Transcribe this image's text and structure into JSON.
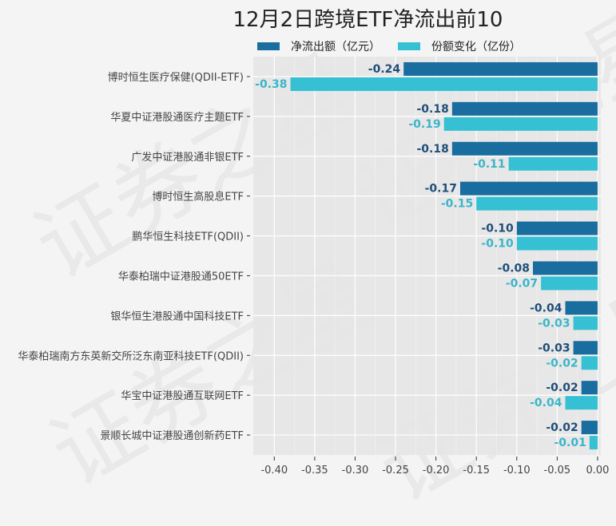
{
  "watermark": "证券之星",
  "chart_data": {
    "type": "bar",
    "orientation": "horizontal",
    "title": "12月2日跨境ETF净流出前10",
    "xlabel": "",
    "ylabel": "",
    "xlim": [
      -0.426,
      0.004
    ],
    "x_ticks": [
      -0.4,
      -0.35,
      -0.3,
      -0.25,
      -0.2,
      -0.15,
      -0.1,
      -0.05,
      0.0
    ],
    "x_tick_labels": [
      "-0.40",
      "-0.35",
      "-0.30",
      "-0.25",
      "-0.20",
      "-0.15",
      "-0.10",
      "-0.05",
      "0.00"
    ],
    "grid": true,
    "legend_position": "top",
    "categories": [
      "博时恒生医疗保健(QDII-ETF)",
      "华夏中证港股通医疗主题ETF",
      "广发中证港股通非银ETF",
      "博时恒生高股息ETF",
      "鹏华恒生科技ETF(QDII)",
      "华泰柏瑞中证港股通50ETF",
      "银华恒生港股通中国科技ETF",
      "华泰柏瑞南方东英新交所泛东南亚科技ETF(QDII)",
      "华宝中证港股通互联网ETF",
      "景顺长城中证港股通创新药ETF"
    ],
    "series": [
      {
        "name": "净流出额（亿元）",
        "color": "#1a6e9f",
        "label_color": "#1f4e79",
        "values": [
          -0.24,
          -0.18,
          -0.18,
          -0.17,
          -0.1,
          -0.08,
          -0.04,
          -0.03,
          -0.02,
          -0.02
        ],
        "labels": [
          "-0.24",
          "-0.18",
          "-0.18",
          "-0.17",
          "-0.10",
          "-0.08",
          "-0.04",
          "-0.03",
          "-0.02",
          "-0.02"
        ]
      },
      {
        "name": "份额变化（亿份）",
        "color": "#35c0d3",
        "label_color": "#3ab5c9",
        "values": [
          -0.38,
          -0.19,
          -0.11,
          -0.15,
          -0.1,
          -0.07,
          -0.03,
          -0.02,
          -0.04,
          -0.01
        ],
        "labels": [
          "-0.38",
          "-0.19",
          "-0.11",
          "-0.15",
          "-0.10",
          "-0.07",
          "-0.03",
          "-0.02",
          "-0.04",
          "-0.01"
        ]
      }
    ]
  }
}
